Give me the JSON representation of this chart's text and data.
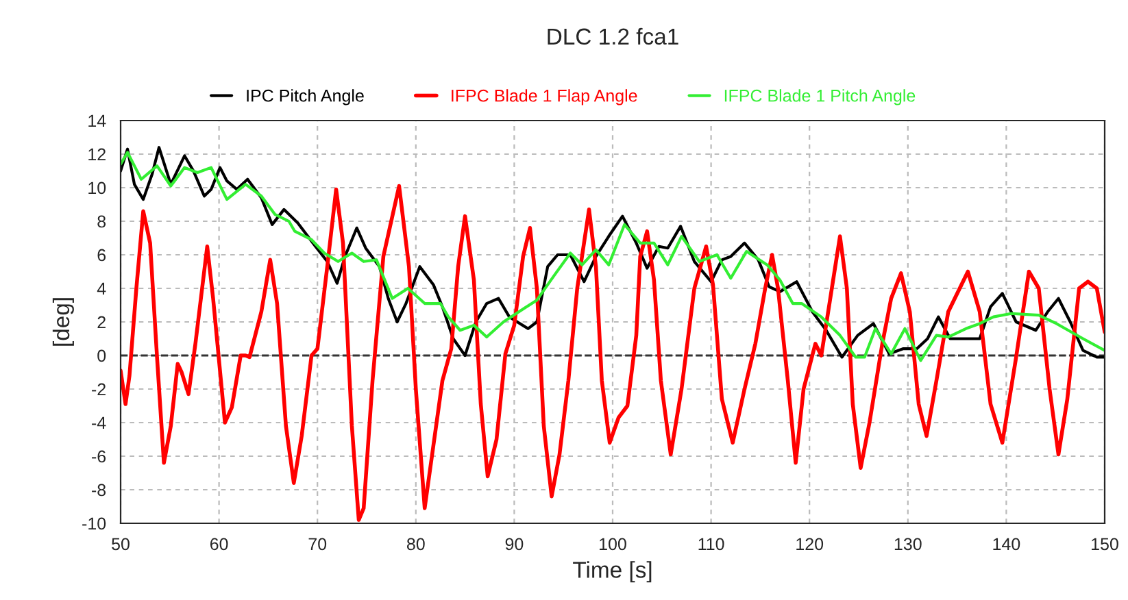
{
  "chart_data": {
    "type": "line",
    "title": "DLC 1.2 fca1",
    "xlabel": "Time [s]",
    "ylabel": "[deg]",
    "xlim": [
      50,
      150
    ],
    "xticks": [
      50,
      60,
      70,
      80,
      90,
      100,
      110,
      120,
      130,
      140,
      150
    ],
    "ylim": [
      -10,
      14
    ],
    "yticks": [
      -10,
      -8,
      -6,
      -4,
      -2,
      0,
      2,
      4,
      6,
      8,
      10,
      12,
      14
    ],
    "grid": true,
    "legend": "top",
    "line_style": "solid",
    "marker": "none",
    "ref_lines": [
      {
        "axis": "y",
        "value": 0,
        "color": "#333333",
        "line_style": "dashed"
      }
    ],
    "series": [
      {
        "name": "IPC Pitch Angle",
        "color": "#000000",
        "x": [
          50,
          50.7,
          51.4,
          52.3,
          53.2,
          53.9,
          55.1,
          56.5,
          57.4,
          58.5,
          59.2,
          60.1,
          60.8,
          61.8,
          62.9,
          64.3,
          65.4,
          66.6,
          68.0,
          69.8,
          71.0,
          72.0,
          72.8,
          74.0,
          74.9,
          76.3,
          77.2,
          78.1,
          79.0,
          80.4,
          81.8,
          82.7,
          83.8,
          85.0,
          86.1,
          87.2,
          88.4,
          89.5,
          91.4,
          92.3,
          93.4,
          94.4,
          95.7,
          97.1,
          98.3,
          99.6,
          101.0,
          102.4,
          103.5,
          104.7,
          105.6,
          106.9,
          108.3,
          110.0,
          111.1,
          112.0,
          113.4,
          114.8,
          115.9,
          117.0,
          118.7,
          120.3,
          121.7,
          123.3,
          124.9,
          126.5,
          128.1,
          129.5,
          130.9,
          132.0,
          133.1,
          134.3,
          137.3,
          138.4,
          139.6,
          141.0,
          143.0,
          144.2,
          145.3,
          146.5,
          147.8,
          149.2,
          150
        ],
        "values": [
          11.0,
          12.3,
          10.2,
          9.3,
          10.8,
          12.4,
          10.2,
          11.9,
          11.0,
          9.5,
          9.9,
          11.2,
          10.4,
          9.9,
          10.5,
          9.4,
          7.8,
          8.7,
          7.9,
          6.5,
          5.6,
          4.3,
          5.9,
          7.6,
          6.4,
          5.3,
          3.4,
          2.0,
          3.1,
          5.3,
          4.2,
          2.9,
          1.0,
          0,
          2.0,
          3.1,
          3.4,
          2.3,
          1.6,
          2.0,
          5.3,
          6.0,
          6.0,
          4.4,
          5.9,
          7.1,
          8.3,
          6.7,
          5.2,
          6.5,
          6.4,
          7.7,
          5.6,
          4.4,
          5.7,
          5.9,
          6.7,
          5.7,
          4.1,
          3.8,
          4.4,
          2.6,
          1.5,
          -0.1,
          1.2,
          1.9,
          0.1,
          0.4,
          0.4,
          1.0,
          2.3,
          1.0,
          1.0,
          2.9,
          3.7,
          2.0,
          1.5,
          2.6,
          3.4,
          2.0,
          0.3,
          -0.1,
          -0.1
        ]
      },
      {
        "name": "IFPC Blade 1 Flap Angle",
        "color": "#ff0000",
        "x": [
          50,
          50.5,
          50.9,
          51.6,
          52.3,
          53.0,
          53.7,
          54.4,
          55.1,
          55.8,
          56.2,
          56.9,
          57.6,
          58.8,
          59.4,
          60.6,
          61.3,
          62.2,
          62.7,
          63.1,
          64.3,
          65.2,
          65.9,
          66.8,
          67.6,
          68.4,
          69.4,
          70.0,
          71.0,
          71.9,
          72.6,
          73.5,
          74.2,
          74.7,
          75.6,
          76.7,
          78.3,
          79.3,
          80.0,
          80.9,
          81.8,
          82.7,
          83.6,
          84.3,
          85.0,
          85.9,
          86.6,
          87.3,
          88.2,
          89.1,
          90.0,
          90.9,
          91.6,
          92.3,
          93.0,
          93.8,
          94.6,
          95.5,
          96.4,
          97.6,
          98.3,
          98.9,
          99.7,
          100.6,
          101.5,
          102.4,
          102.8,
          103.5,
          104.2,
          104.9,
          105.9,
          107.0,
          108.3,
          109.5,
          110.2,
          111.1,
          112.2,
          113.4,
          114.5,
          115.5,
          116.2,
          116.8,
          117.8,
          118.6,
          119.4,
          120.6,
          121.2,
          121.9,
          123.1,
          123.8,
          124.4,
          125.2,
          126.1,
          127.4,
          128.3,
          129.3,
          130.2,
          131.1,
          131.9,
          132.9,
          134.1,
          136.1,
          137.3,
          138.4,
          139.6,
          141.0,
          142.3,
          143.3,
          144.4,
          145.3,
          146.2,
          147.4,
          148.3,
          149.2,
          150
        ],
        "values": [
          -0.9,
          -2.9,
          -1.2,
          4.0,
          8.6,
          6.7,
          -0.1,
          -6.4,
          -4.2,
          -0.5,
          -1.0,
          -2.3,
          0.7,
          6.5,
          3.4,
          -4.0,
          -3.1,
          0,
          0,
          -0.1,
          2.6,
          5.7,
          3.1,
          -4.2,
          -7.6,
          -4.8,
          0,
          0.4,
          5.3,
          9.9,
          6.7,
          -4.2,
          -9.8,
          -9.1,
          -1.5,
          5.9,
          10.1,
          5.3,
          -2.0,
          -9.1,
          -5.3,
          -1.5,
          0.4,
          5.3,
          8.3,
          4.5,
          -2.9,
          -7.2,
          -5.0,
          0.1,
          1.8,
          5.9,
          7.6,
          4.0,
          -4.2,
          -8.4,
          -5.9,
          -1.5,
          4.0,
          8.7,
          5.3,
          -1.5,
          -5.2,
          -3.7,
          -3.0,
          1.2,
          5.9,
          7.4,
          4.5,
          -1.5,
          -5.9,
          -2.0,
          4.0,
          6.5,
          4.2,
          -2.6,
          -5.2,
          -2.0,
          0.7,
          4.0,
          6.0,
          4.0,
          -1.5,
          -6.4,
          -2.0,
          0.7,
          0,
          2.6,
          7.1,
          4.0,
          -2.9,
          -6.7,
          -4.0,
          0.7,
          3.4,
          4.9,
          2.6,
          -2.9,
          -4.8,
          -1.5,
          2.6,
          5.0,
          2.6,
          -2.9,
          -5.2,
          -0.1,
          5.0,
          4.0,
          -2.0,
          -5.9,
          -2.6,
          4.0,
          4.4,
          4.0,
          1.4
        ]
      },
      {
        "name": "IFPC Blade 1 Pitch Angle",
        "color": "#33ee33",
        "x": [
          50,
          50.7,
          52.1,
          53.7,
          55.1,
          56.5,
          57.8,
          59.2,
          60.8,
          62.7,
          64.3,
          65.7,
          67.1,
          67.7,
          69.4,
          70.7,
          72.1,
          73.5,
          74.7,
          76.0,
          77.6,
          79.2,
          80.9,
          82.5,
          83.3,
          84.5,
          85.9,
          87.2,
          88.9,
          90.2,
          92.3,
          94.1,
          95.7,
          96.9,
          98.3,
          99.6,
          101.2,
          102.8,
          104.2,
          105.6,
          107.0,
          108.8,
          110.6,
          112.0,
          113.6,
          115.7,
          117.0,
          118.3,
          119.2,
          121.2,
          123.1,
          124.7,
          125.6,
          126.7,
          128.3,
          129.7,
          131.3,
          132.9,
          134.1,
          135.9,
          137.3,
          138.7,
          140.5,
          143.3,
          145.1,
          147.8,
          150
        ],
        "values": [
          11.4,
          12.1,
          10.5,
          11.3,
          10.1,
          11.2,
          10.9,
          11.2,
          9.3,
          10.2,
          9.5,
          8.4,
          8.0,
          7.4,
          6.9,
          6.1,
          5.6,
          6.1,
          5.6,
          5.7,
          3.4,
          4.0,
          3.1,
          3.1,
          2.3,
          1.5,
          1.8,
          1.1,
          2.0,
          2.5,
          3.3,
          4.8,
          6.1,
          5.4,
          6.3,
          5.4,
          7.8,
          6.7,
          6.7,
          5.4,
          7.1,
          5.6,
          6.0,
          4.6,
          6.2,
          5.4,
          4.5,
          3.1,
          3.1,
          2.3,
          1.2,
          -0.1,
          -0.1,
          1.6,
          0.1,
          1.6,
          -0.3,
          1.2,
          1.1,
          1.6,
          1.9,
          2.3,
          2.5,
          2.4,
          1.9,
          1.0,
          0.3
        ]
      }
    ]
  }
}
